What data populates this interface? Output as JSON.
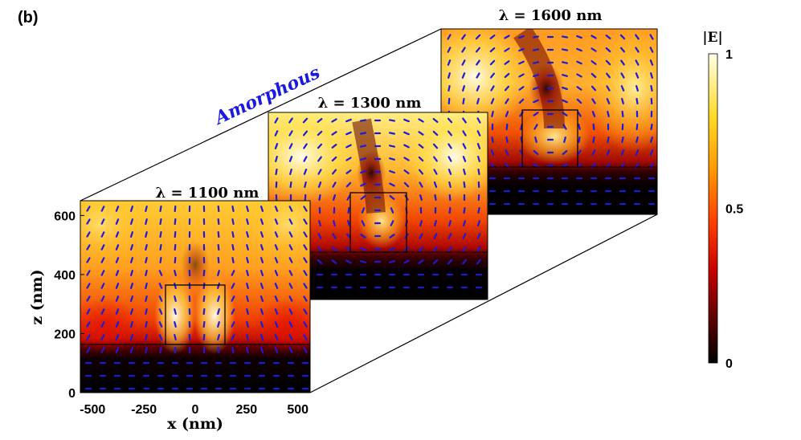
{
  "panel_label": "(b)",
  "chart_data": {
    "type": "heatmap",
    "description_label": "Amorphous",
    "xlabel": "x (nm)",
    "ylabel": "z (nm)",
    "xlim": [
      -560,
      560
    ],
    "ylim": [
      0,
      650
    ],
    "x_ticks": [
      -500,
      -250,
      0,
      250,
      500
    ],
    "x_tick_labels": [
      "-500",
      "-250",
      "0",
      "250",
      "500"
    ],
    "y_ticks": [
      0,
      200,
      400,
      600
    ],
    "y_tick_labels": [
      "0",
      "200",
      "400",
      "600"
    ],
    "interface_z": 160,
    "particle": {
      "x_min": -150,
      "x_max": 150,
      "z_min": 160,
      "z_max": 360
    },
    "panels": [
      {
        "lambda_nm": 1100,
        "title": "λ = 1100 nm"
      },
      {
        "lambda_nm": 1300,
        "title": "λ = 1300 nm"
      },
      {
        "lambda_nm": 1600,
        "title": "λ = 1600 nm"
      }
    ],
    "colorbar": {
      "label": "|E|",
      "range": [
        0,
        1
      ],
      "ticks": [
        0,
        0.5,
        1
      ],
      "tick_labels": [
        "0",
        "0.5",
        "1"
      ],
      "colormap": "hot",
      "colors": [
        "#000000",
        "#5a0000",
        "#c80000",
        "#ff3c00",
        "#ff9600",
        "#ffdc28",
        "#ffffe6"
      ]
    },
    "arrow_color": "#1a1adc"
  }
}
